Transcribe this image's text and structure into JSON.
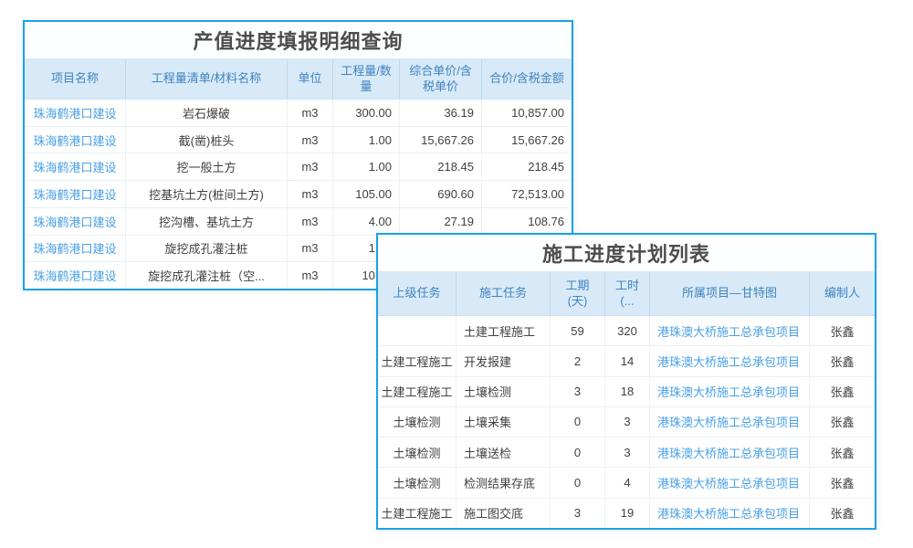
{
  "colors": {
    "card_border": "#19a2e6",
    "header_bg": "#d8eaf8",
    "header_text": "#4183bf",
    "link_text": "#4aa0e6",
    "body_text": "#404040",
    "title_text": "#4d4d4d"
  },
  "output_table": {
    "title": "产值进度填报明细查询",
    "columns": [
      "项目名称",
      "工程量清单/材料名称",
      "单位",
      "工程量/数量",
      "综合单价/含税单价",
      "合价/含税金额"
    ],
    "rows": [
      [
        "珠海鹤港口建设",
        "岩石爆破",
        "m3",
        "300.00",
        "36.19",
        "10,857.00"
      ],
      [
        "珠海鹤港口建设",
        "截(凿)桩头",
        "m3",
        "1.00",
        "15,667.26",
        "15,667.26"
      ],
      [
        "珠海鹤港口建设",
        "挖一般土方",
        "m3",
        "1.00",
        "218.45",
        "218.45"
      ],
      [
        "珠海鹤港口建设",
        "挖基坑土方(桩间土方)",
        "m3",
        "105.00",
        "690.60",
        "72,513.00"
      ],
      [
        "珠海鹤港口建设",
        "挖沟槽、基坑土方",
        "m3",
        "4.00",
        "27.19",
        "108.76"
      ],
      [
        "珠海鹤港口建设",
        "旋挖成孔灌注桩",
        "m3",
        "1.00",
        "",
        ""
      ],
      [
        "珠海鹤港口建设",
        "旋挖成孔灌注桩（空...",
        "m3",
        "10.00",
        "",
        ""
      ]
    ]
  },
  "schedule_table": {
    "title": "施工进度计划列表",
    "columns": [
      "上级任务",
      "施工任务",
      "工期\n(天)",
      "工时\n(...",
      "所属项目—甘特图",
      "编制人"
    ],
    "rows": [
      [
        "",
        "土建工程施工",
        "59",
        "320",
        "港珠澳大桥施工总承包项目",
        "张鑫"
      ],
      [
        "土建工程施工",
        "开发报建",
        "2",
        "14",
        "港珠澳大桥施工总承包项目",
        "张鑫"
      ],
      [
        "土建工程施工",
        "土壤检测",
        "3",
        "18",
        "港珠澳大桥施工总承包项目",
        "张鑫"
      ],
      [
        "土壤检测",
        "土壤采集",
        "0",
        "3",
        "港珠澳大桥施工总承包项目",
        "张鑫"
      ],
      [
        "土壤检测",
        "土壤送检",
        "0",
        "3",
        "港珠澳大桥施工总承包项目",
        "张鑫"
      ],
      [
        "土壤检测",
        "检测结果存底",
        "0",
        "4",
        "港珠澳大桥施工总承包项目",
        "张鑫"
      ],
      [
        "土建工程施工",
        "施工图交底",
        "3",
        "19",
        "港珠澳大桥施工总承包项目",
        "张鑫"
      ]
    ]
  }
}
